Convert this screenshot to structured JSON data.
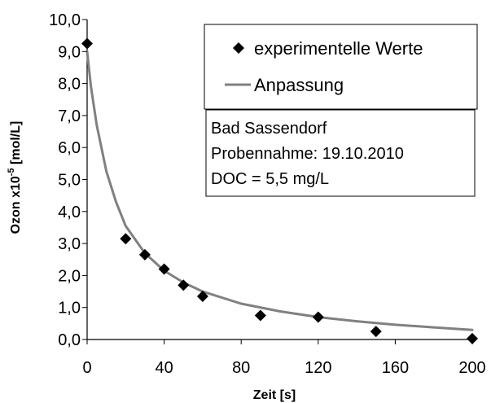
{
  "chart_data": {
    "type": "scatter",
    "xlabel": "Zeit [s]",
    "ylabel": {
      "prefix": "Ozon x10",
      "exponent": "-5",
      "suffix": " [mol/L]"
    },
    "xlim": [
      0,
      200
    ],
    "ylim": [
      0,
      10
    ],
    "xticks": [
      "0",
      "40",
      "80",
      "120",
      "160",
      "200"
    ],
    "xtick_values": [
      0,
      40,
      80,
      120,
      160,
      200
    ],
    "yticks": [
      "0,0",
      "1,0",
      "2,0",
      "3,0",
      "4,0",
      "5,0",
      "6,0",
      "7,0",
      "8,0",
      "9,0",
      "10,0"
    ],
    "ytick_values": [
      0,
      1,
      2,
      3,
      4,
      5,
      6,
      7,
      8,
      9,
      10
    ],
    "grid": false,
    "legend_position": "top-right",
    "series": [
      {
        "name": "experimentelle Werte",
        "marker": "diamond",
        "color": "#000000",
        "x": [
          0,
          20,
          30,
          40,
          50,
          60,
          90,
          120,
          150,
          200
        ],
        "y": [
          9.25,
          3.15,
          2.65,
          2.2,
          1.7,
          1.35,
          0.75,
          0.7,
          0.25,
          0.03
        ]
      },
      {
        "name": "Anpassung",
        "style": "line",
        "color": "#808080",
        "x": [
          0,
          2,
          5,
          10,
          15,
          20,
          30,
          40,
          50,
          60,
          80,
          100,
          120,
          140,
          160,
          180,
          200
        ],
        "y": [
          9.0,
          7.9,
          6.7,
          5.25,
          4.3,
          3.55,
          2.7,
          2.15,
          1.78,
          1.5,
          1.12,
          0.88,
          0.7,
          0.57,
          0.46,
          0.38,
          0.3
        ]
      }
    ],
    "annotation": [
      "Bad Sassendorf",
      "Probennahme: 19.10.2010",
      "DOC = 5,5 mg/L"
    ]
  }
}
